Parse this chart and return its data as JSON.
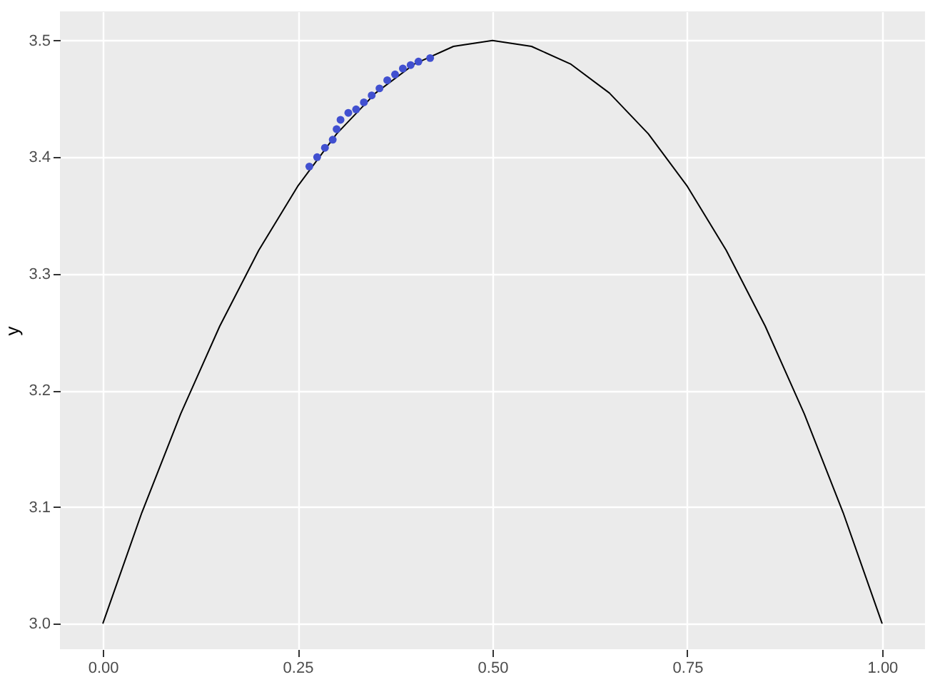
{
  "chart_data": {
    "type": "line",
    "ylabel": "y",
    "xlim": [
      -0.055,
      1.055
    ],
    "ylim": [
      2.978,
      3.525
    ],
    "xticks": [
      {
        "value": 0,
        "label": "0.00"
      },
      0.25,
      {
        "value": 0.5,
        "label": "0.50"
      },
      0.75,
      {
        "value": 1,
        "label": "1.00"
      }
    ],
    "yticks": [
      {
        "value": 3,
        "label": "3.0"
      },
      3.1,
      3.2,
      3.3,
      3.4,
      3.5
    ],
    "grid": true,
    "legend": false,
    "series": [
      {
        "type": "line",
        "color": "#000000",
        "marker": "none",
        "line_style": "solid",
        "x": [
          0,
          0.05,
          0.1,
          0.15,
          0.2,
          0.25,
          0.3,
          0.35,
          0.4,
          0.45,
          0.5,
          0.55,
          0.6,
          0.65,
          0.7,
          0.75,
          0.8,
          0.85,
          0.9,
          0.95,
          1
        ],
        "values": [
          3.0,
          3.095,
          3.18,
          3.255,
          3.32,
          3.375,
          3.42,
          3.455,
          3.48,
          3.495,
          3.5,
          3.495,
          3.48,
          3.455,
          3.42,
          3.375,
          3.32,
          3.255,
          3.18,
          3.095,
          3.0
        ]
      },
      {
        "type": "scatter",
        "color": "#4150d0",
        "marker": "circle",
        "x": [
          0.265,
          0.275,
          0.285,
          0.295,
          0.3,
          0.305,
          0.315,
          0.325,
          0.335,
          0.345,
          0.355,
          0.365,
          0.375,
          0.385,
          0.395,
          0.405,
          0.42
        ],
        "values": [
          3.392,
          3.4,
          3.408,
          3.415,
          3.424,
          3.432,
          3.438,
          3.441,
          3.447,
          3.453,
          3.459,
          3.466,
          3.471,
          3.476,
          3.479,
          3.482,
          3.485
        ]
      }
    ]
  }
}
